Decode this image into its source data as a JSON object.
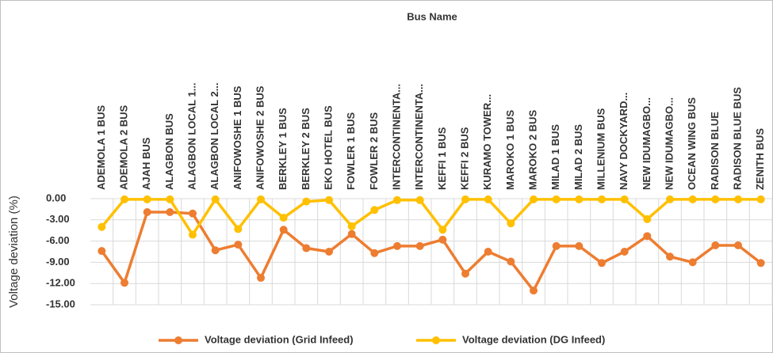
{
  "chart_data": {
    "type": "line",
    "title": "Bus Name",
    "y_label": "Voltage deviation (%)",
    "categories": [
      "ADEMOLA 1 BUS",
      "ADEMOLA 2 BUS",
      "AJAH BUS",
      "ALAGBON BUS",
      "ALAGBON LOCAL 1...",
      "ALAGBON LOCAL 2...",
      "ANIFOWOSHE 1 BUS",
      "ANIFOWOSHE 2 BUS",
      "BERKLEY 1 BUS",
      "BERKLEY 2 BUS",
      "EKO HOTEL BUS",
      "FOWLER 1 BUS",
      "FOWLER 2 BUS",
      "INTERCONTINENTA...",
      "INTERCONTINENTA...",
      "KEFFI 1 BUS",
      "KEFFI 2 BUS",
      "KURAMO TOWER...",
      "MAROKO 1 BUS",
      "MAROKO 2 BUS",
      "MILAD 1 BUS",
      "MILAD 2 BUS",
      "MILLENIUM BUS",
      "NAVY DOCKYARD...",
      "NEW IDUMAGBO...",
      "NEW IDUMAGBO...",
      "OCEAN WING BUS",
      "RADISON BLUE",
      "RADISON BLUE BUS",
      "ZENITH BUS"
    ],
    "series": [
      {
        "name": "Voltage deviation (Grid Infeed)",
        "color": "#ed7d31",
        "values": [
          -7.4,
          -11.9,
          -1.9,
          -1.9,
          -2.1,
          -7.3,
          -6.5,
          -11.2,
          -4.4,
          -7.0,
          -7.5,
          -5.0,
          -7.7,
          -6.7,
          -6.7,
          -5.8,
          -10.6,
          -7.5,
          -8.9,
          -13.0,
          -6.7,
          -6.7,
          -9.1,
          -7.5,
          -5.3,
          -8.2,
          -9.0,
          -6.6,
          -6.6,
          -9.1
        ]
      },
      {
        "name": "Voltage deviation (DG Infeed)",
        "color": "#ffc000",
        "values": [
          -4.0,
          -0.1,
          -0.1,
          -0.1,
          -5.1,
          -0.1,
          -4.3,
          -0.1,
          -2.7,
          -0.4,
          -0.2,
          -3.9,
          -1.6,
          -0.2,
          -0.2,
          -4.4,
          -0.1,
          -0.1,
          -3.5,
          -0.1,
          -0.1,
          -0.1,
          -0.1,
          -0.1,
          -2.9,
          -0.1,
          -0.1,
          -0.1,
          -0.1,
          -0.1
        ]
      }
    ],
    "ylim": [
      -15,
      0
    ],
    "yticks": [
      {
        "value": 0,
        "label": "0.00"
      },
      {
        "value": -3,
        "label": "-3.00"
      },
      {
        "value": -6,
        "label": "-6.00"
      },
      {
        "value": -9,
        "label": "-9.00"
      },
      {
        "value": -12,
        "label": "-12.00"
      },
      {
        "value": -15,
        "label": "-15.00"
      }
    ],
    "grid": true,
    "legend": "bottom"
  }
}
